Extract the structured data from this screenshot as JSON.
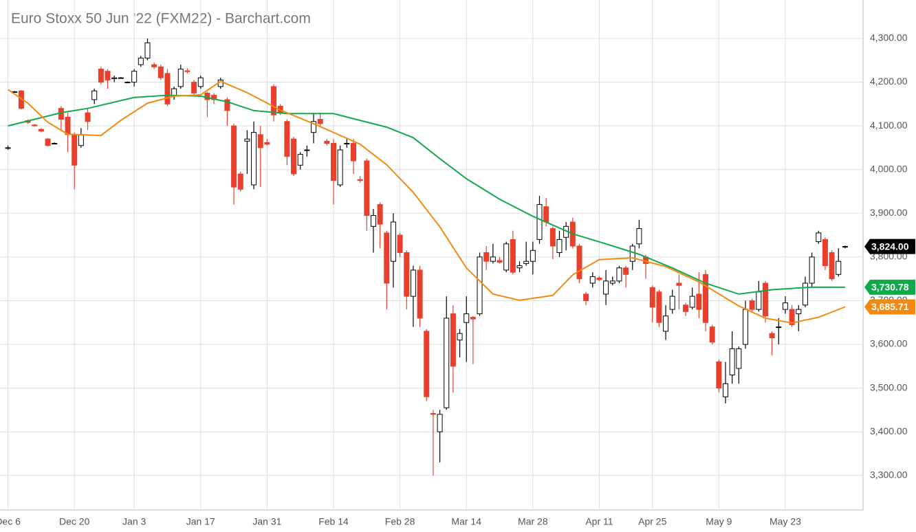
{
  "chart_data": {
    "type": "candlestick",
    "title": "Euro Stoxx 50 Jun '22 (FXM22) - Barchart.com",
    "up_color": "#000000",
    "down_color": "#e8402c",
    "grid": true,
    "xlim": [
      -1.2,
      128.7
    ],
    "ylim": [
      3221,
      4388
    ],
    "xticks": [
      {
        "value": 0,
        "label": "Dec 6"
      },
      {
        "value": 10,
        "label": "Dec 20"
      },
      {
        "value": 19,
        "label": "Jan 3"
      },
      {
        "value": 29,
        "label": "Jan 17"
      },
      {
        "value": 39,
        "label": "Jan 31"
      },
      {
        "value": 49,
        "label": "Feb 14"
      },
      {
        "value": 59,
        "label": "Feb 28"
      },
      {
        "value": 69,
        "label": "Mar 14"
      },
      {
        "value": 79,
        "label": "Mar 28"
      },
      {
        "value": 89,
        "label": "Apr 11"
      },
      {
        "value": 97,
        "label": "Apr 25"
      },
      {
        "value": 107,
        "label": "May 9"
      },
      {
        "value": 117,
        "label": "May 23"
      }
    ],
    "yticks": [
      {
        "value": 3300,
        "label": "3,300.00"
      },
      {
        "value": 3400,
        "label": "3,400.00"
      },
      {
        "value": 3500,
        "label": "3,500.00"
      },
      {
        "value": 3600,
        "label": "3,600.00"
      },
      {
        "value": 3700,
        "label": "3,700.00"
      },
      {
        "value": 3800,
        "label": "3,800.00"
      },
      {
        "value": 3900,
        "label": "3,900.00"
      },
      {
        "value": 4000,
        "label": "4,000.00"
      },
      {
        "value": 4100,
        "label": "4,100.00"
      },
      {
        "value": 4200,
        "label": "4,200.00"
      },
      {
        "value": 4300,
        "label": "4,300.00"
      }
    ],
    "open": [
      4050,
      4178,
      4180,
      4112,
      4102,
      4092,
      4070,
      4060,
      4140,
      4120,
      4080,
      4055,
      4130,
      4160,
      4230,
      4225,
      4208,
      4210,
      4200,
      4200,
      4240,
      4255,
      4240,
      4235,
      4220,
      4170,
      4190,
      4226,
      4200,
      4190,
      4175,
      4170,
      4190,
      4160,
      4100,
      3990,
      4065,
      3965,
      4080,
      4062,
      4190,
      4145,
      4110,
      4070,
      4010,
      4045,
      4085,
      4115,
      4065,
      4060,
      3965,
      4060,
      4060,
      3977,
      4020,
      3870,
      3920,
      3855,
      3790,
      3850,
      3810,
      3710,
      3770,
      3630,
      3442,
      3400,
      3455,
      3670,
      3610,
      3650,
      3662,
      3670,
      3810,
      3790,
      3792,
      3770,
      3840,
      3775,
      3785,
      3790,
      3840,
      3915,
      3865,
      3810,
      3845,
      3880,
      3825,
      3715,
      3740,
      3752,
      3715,
      3740,
      3745,
      3775,
      3790,
      3830,
      3800,
      3730,
      3720,
      3630,
      3680,
      3740,
      3690,
      3685,
      3715,
      3760,
      3640,
      3560,
      3480,
      3530,
      3545,
      3600,
      3700,
      3680,
      3740,
      3625,
      3640,
      3680,
      3680,
      3670,
      3690,
      3740,
      3835,
      3840,
      3810,
      3760,
      3823
    ],
    "high": [
      4055,
      4180,
      4182,
      4115,
      4104,
      4095,
      4072,
      4062,
      4145,
      4130,
      4085,
      4095,
      4140,
      4185,
      4235,
      4230,
      4215,
      4212,
      4202,
      4230,
      4260,
      4300,
      4245,
      4240,
      4230,
      4190,
      4240,
      4232,
      4205,
      4215,
      4178,
      4175,
      4210,
      4165,
      4105,
      3995,
      4090,
      4110,
      4100,
      4070,
      4195,
      4150,
      4115,
      4075,
      4040,
      4055,
      4130,
      4130,
      4070,
      4070,
      4055,
      4070,
      4070,
      3985,
      4025,
      3910,
      3925,
      3860,
      3900,
      3855,
      3815,
      3780,
      3780,
      3635,
      3450,
      3450,
      3710,
      3690,
      3635,
      3710,
      3665,
      3810,
      3825,
      3830,
      3800,
      3835,
      3860,
      3790,
      3835,
      3835,
      3940,
      3935,
      3870,
      3860,
      3880,
      3890,
      3830,
      3720,
      3765,
      3756,
      3770,
      3755,
      3780,
      3780,
      3830,
      3885,
      3805,
      3735,
      3725,
      3690,
      3725,
      3760,
      3695,
      3730,
      3765,
      3770,
      3645,
      3565,
      3560,
      3630,
      3595,
      3700,
      3705,
      3745,
      3745,
      3630,
      3660,
      3710,
      3690,
      3690,
      3755,
      3810,
      3860,
      3845,
      3815,
      3820,
      3826
    ],
    "low": [
      4045,
      4176,
      4138,
      4105,
      4098,
      4085,
      4053,
      4058,
      4090,
      4040,
      3955,
      4050,
      4090,
      4150,
      4195,
      4185,
      4200,
      4208,
      4198,
      4190,
      4235,
      4250,
      4230,
      4205,
      4145,
      4160,
      4185,
      4220,
      4170,
      4185,
      4120,
      4150,
      4185,
      4100,
      3920,
      3950,
      3990,
      3955,
      3960,
      4055,
      4110,
      4125,
      4010,
      3985,
      4000,
      4030,
      4060,
      4100,
      4055,
      3920,
      3960,
      4050,
      3990,
      3970,
      3860,
      3810,
      3820,
      3680,
      3730,
      3800,
      3680,
      3640,
      3640,
      3470,
      3300,
      3330,
      3450,
      3490,
      3570,
      3560,
      3555,
      3665,
      3770,
      3785,
      3785,
      3765,
      3760,
      3765,
      3780,
      3760,
      3830,
      3870,
      3795,
      3800,
      3815,
      3820,
      3740,
      3690,
      3730,
      3745,
      3690,
      3735,
      3740,
      3730,
      3770,
      3820,
      3750,
      3650,
      3640,
      3610,
      3670,
      3680,
      3665,
      3680,
      3660,
      3630,
      3600,
      3490,
      3465,
      3510,
      3510,
      3590,
      3675,
      3675,
      3650,
      3575,
      3600,
      3670,
      3640,
      3630,
      3685,
      3730,
      3830,
      3770,
      3745,
      3755,
      3820
    ],
    "close": [
      4050,
      4178,
      4140,
      4108,
      4100,
      4088,
      4055,
      4060,
      4115,
      4080,
      4010,
      4080,
      4110,
      4180,
      4200,
      4205,
      4210,
      4210,
      4200,
      4225,
      4255,
      4290,
      4235,
      4210,
      4150,
      4185,
      4230,
      4224,
      4175,
      4210,
      4160,
      4160,
      4205,
      4135,
      3960,
      3955,
      4070,
      4085,
      4050,
      4058,
      4125,
      4130,
      4030,
      3990,
      4035,
      4045,
      4110,
      4105,
      4060,
      3975,
      4045,
      4060,
      4020,
      3975,
      3895,
      3895,
      3875,
      3740,
      3880,
      3810,
      3710,
      3770,
      3660,
      3480,
      3440,
      3440,
      3660,
      3550,
      3625,
      3670,
      3658,
      3800,
      3790,
      3800,
      3788,
      3830,
      3765,
      3780,
      3790,
      3815,
      3920,
      3880,
      3825,
      3840,
      3870,
      3825,
      3750,
      3700,
      3755,
      3748,
      3745,
      3745,
      3775,
      3760,
      3825,
      3865,
      3785,
      3685,
      3650,
      3665,
      3710,
      3735,
      3675,
      3710,
      3680,
      3650,
      3605,
      3500,
      3510,
      3590,
      3590,
      3680,
      3680,
      3720,
      3665,
      3615,
      3640,
      3695,
      3645,
      3680,
      3740,
      3800,
      3855,
      3780,
      3750,
      3790,
      3824
    ],
    "lines": [
      {
        "color": "#12a94b",
        "x": [
          0,
          8,
          12,
          19,
          24,
          29,
          33,
          37,
          42,
          49,
          57,
          61,
          65,
          69,
          74,
          79,
          85,
          90,
          95,
          100,
          105,
          110,
          115,
          121,
          126
        ],
        "values": [
          4100,
          4130,
          4140,
          4165,
          4170,
          4168,
          4155,
          4135,
          4128,
          4128,
          4097,
          4073,
          4025,
          3979,
          3932,
          3893,
          3853,
          3830,
          3806,
          3775,
          3740,
          3715,
          3725,
          3731,
          3730.78
        ]
      },
      {
        "color": "#f28a12",
        "x": [
          0,
          3,
          6,
          9,
          14,
          17,
          21,
          25,
          29,
          32,
          36,
          41,
          46,
          53,
          57,
          61,
          65,
          69,
          73,
          77,
          82,
          85,
          89,
          94,
          99,
          104,
          110,
          114,
          118,
          122,
          126
        ],
        "values": [
          4183,
          4152,
          4108,
          4081,
          4078,
          4113,
          4152,
          4168,
          4171,
          4202,
          4176,
          4136,
          4105,
          4058,
          4011,
          3948,
          3869,
          3775,
          3715,
          3701,
          3712,
          3759,
          3794,
          3798,
          3778,
          3743,
          3688,
          3660,
          3649,
          3662,
          3685.71
        ]
      }
    ],
    "price_labels": [
      {
        "value": 3824,
        "label": "3,824.00",
        "color": "#000000"
      },
      {
        "value": 3730.78,
        "label": "3,730.78",
        "color": "#12a94b"
      },
      {
        "value": 3685.71,
        "label": "3,685.71",
        "color": "#f28a12"
      }
    ]
  }
}
